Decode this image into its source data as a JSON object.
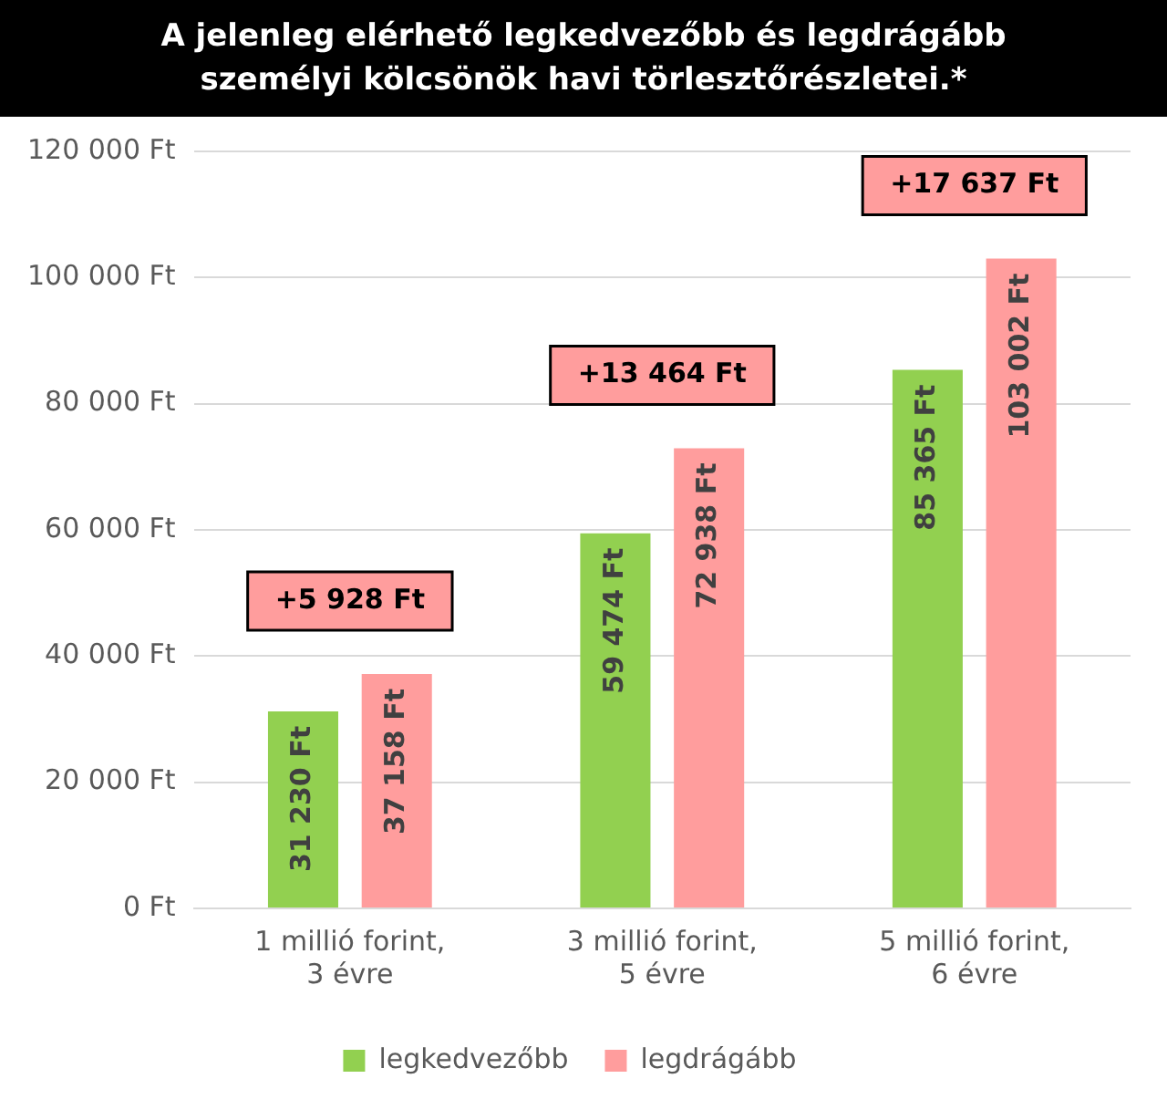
{
  "chart_data": {
    "type": "bar",
    "title": "A jelenleg elérhető legkedvezőbb és legdrágább személyi kölcsönök havi törlesztőrészletei.*",
    "categories": [
      "1 millió forint,\n3 évre",
      "3 millió forint,\n5 évre",
      "5 millió forint,\n6 évre"
    ],
    "series": [
      {
        "name": "legkedvezőbb",
        "color": "#92d050",
        "values": [
          31230,
          59474,
          85365
        ],
        "value_labels": [
          "31 230 Ft",
          "59 474 Ft",
          "85 365 Ft"
        ]
      },
      {
        "name": "legdrágább",
        "color": "#ff9d9d",
        "values": [
          37158,
          72938,
          103002
        ],
        "value_labels": [
          "37 158 Ft",
          "72 938 Ft",
          "103 002 Ft"
        ]
      }
    ],
    "ylim": [
      0,
      120000
    ],
    "yticks": [
      {
        "value": 0,
        "label": "0 Ft"
      },
      {
        "value": 20000,
        "label": "20 000 Ft"
      },
      {
        "value": 40000,
        "label": "40 000 Ft"
      },
      {
        "value": 60000,
        "label": "60 000 Ft"
      },
      {
        "value": 80000,
        "label": "80 000 Ft"
      },
      {
        "value": 100000,
        "label": "100 000 Ft"
      },
      {
        "value": 120000,
        "label": "120 000 Ft"
      }
    ],
    "annotations": [
      "+5 928 Ft",
      "+13 464 Ft",
      "+17 637 Ft"
    ],
    "grid": "y",
    "legend": "bottom"
  }
}
